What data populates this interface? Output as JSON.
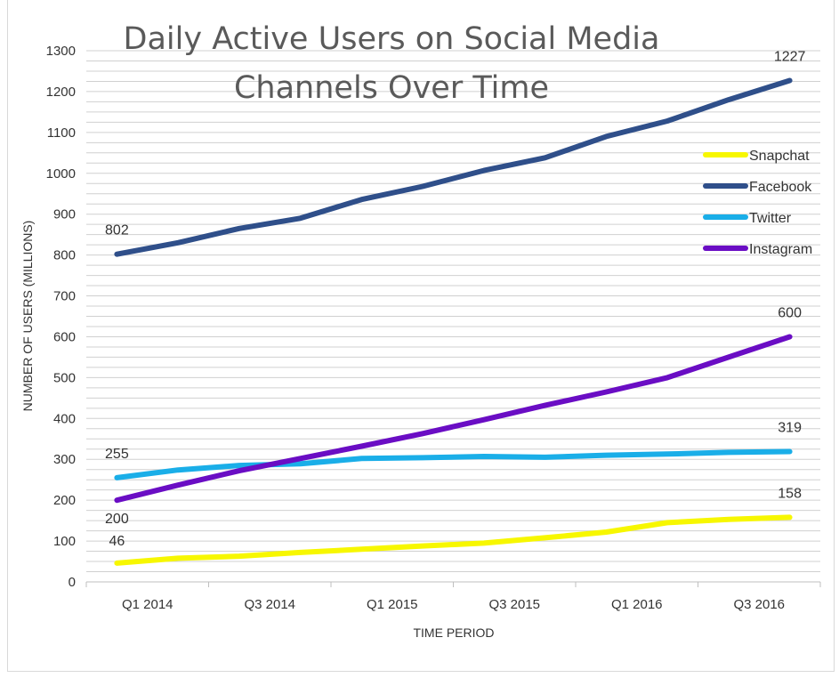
{
  "chart_data": {
    "type": "line",
    "title_lines": [
      "Daily Active Users on Social Media",
      "Channels Over Time"
    ],
    "xlabel": "TIME PERIOD",
    "ylabel": "NUMBER OF USERS (MILLIONS)",
    "ylim": [
      0,
      1300
    ],
    "y_ticks": [
      0,
      100,
      200,
      300,
      400,
      500,
      600,
      700,
      800,
      900,
      1000,
      1100,
      1200,
      1300
    ],
    "grid": true,
    "legend_position": "right",
    "categories": [
      "Q1 2014",
      "Q2 2014",
      "Q3 2014",
      "Q4 2014",
      "Q1 2015",
      "Q2 2015",
      "Q3 2015",
      "Q4 2015",
      "Q1 2016",
      "Q2 2016",
      "Q3 2016",
      "Q4 2016"
    ],
    "x_tick_labels": [
      "Q1 2014",
      "Q3 2014",
      "Q1 2015",
      "Q3 2015",
      "Q1 2016",
      "Q3 2016"
    ],
    "series": [
      {
        "name": "Snapchat",
        "color": "#f7f700",
        "values": [
          46,
          58,
          63,
          72,
          80,
          88,
          95,
          108,
          122,
          145,
          153,
          158
        ]
      },
      {
        "name": "Facebook",
        "color": "#2f4f8a",
        "values": [
          802,
          830,
          865,
          890,
          936,
          968,
          1007,
          1038,
          1090,
          1128,
          1180,
          1227
        ]
      },
      {
        "name": "Twitter",
        "color": "#1aaee8",
        "values": [
          255,
          274,
          285,
          289,
          302,
          304,
          307,
          305,
          310,
          313,
          317,
          319
        ]
      },
      {
        "name": "Instagram",
        "color": "#6a0dc4",
        "values": [
          200,
          237,
          272,
          302,
          332,
          363,
          397,
          432,
          465,
          500,
          550,
          600
        ]
      }
    ],
    "data_labels": [
      {
        "series": "Facebook",
        "index": 0,
        "text": "802"
      },
      {
        "series": "Facebook",
        "index": 11,
        "text": "1227"
      },
      {
        "series": "Instagram",
        "index": 11,
        "text": "600"
      },
      {
        "series": "Instagram",
        "index": 0,
        "text": "200"
      },
      {
        "series": "Twitter",
        "index": 0,
        "text": "255"
      },
      {
        "series": "Twitter",
        "index": 11,
        "text": "319"
      },
      {
        "series": "Snapchat",
        "index": 0,
        "text": "46"
      },
      {
        "series": "Snapchat",
        "index": 11,
        "text": "158"
      }
    ]
  }
}
